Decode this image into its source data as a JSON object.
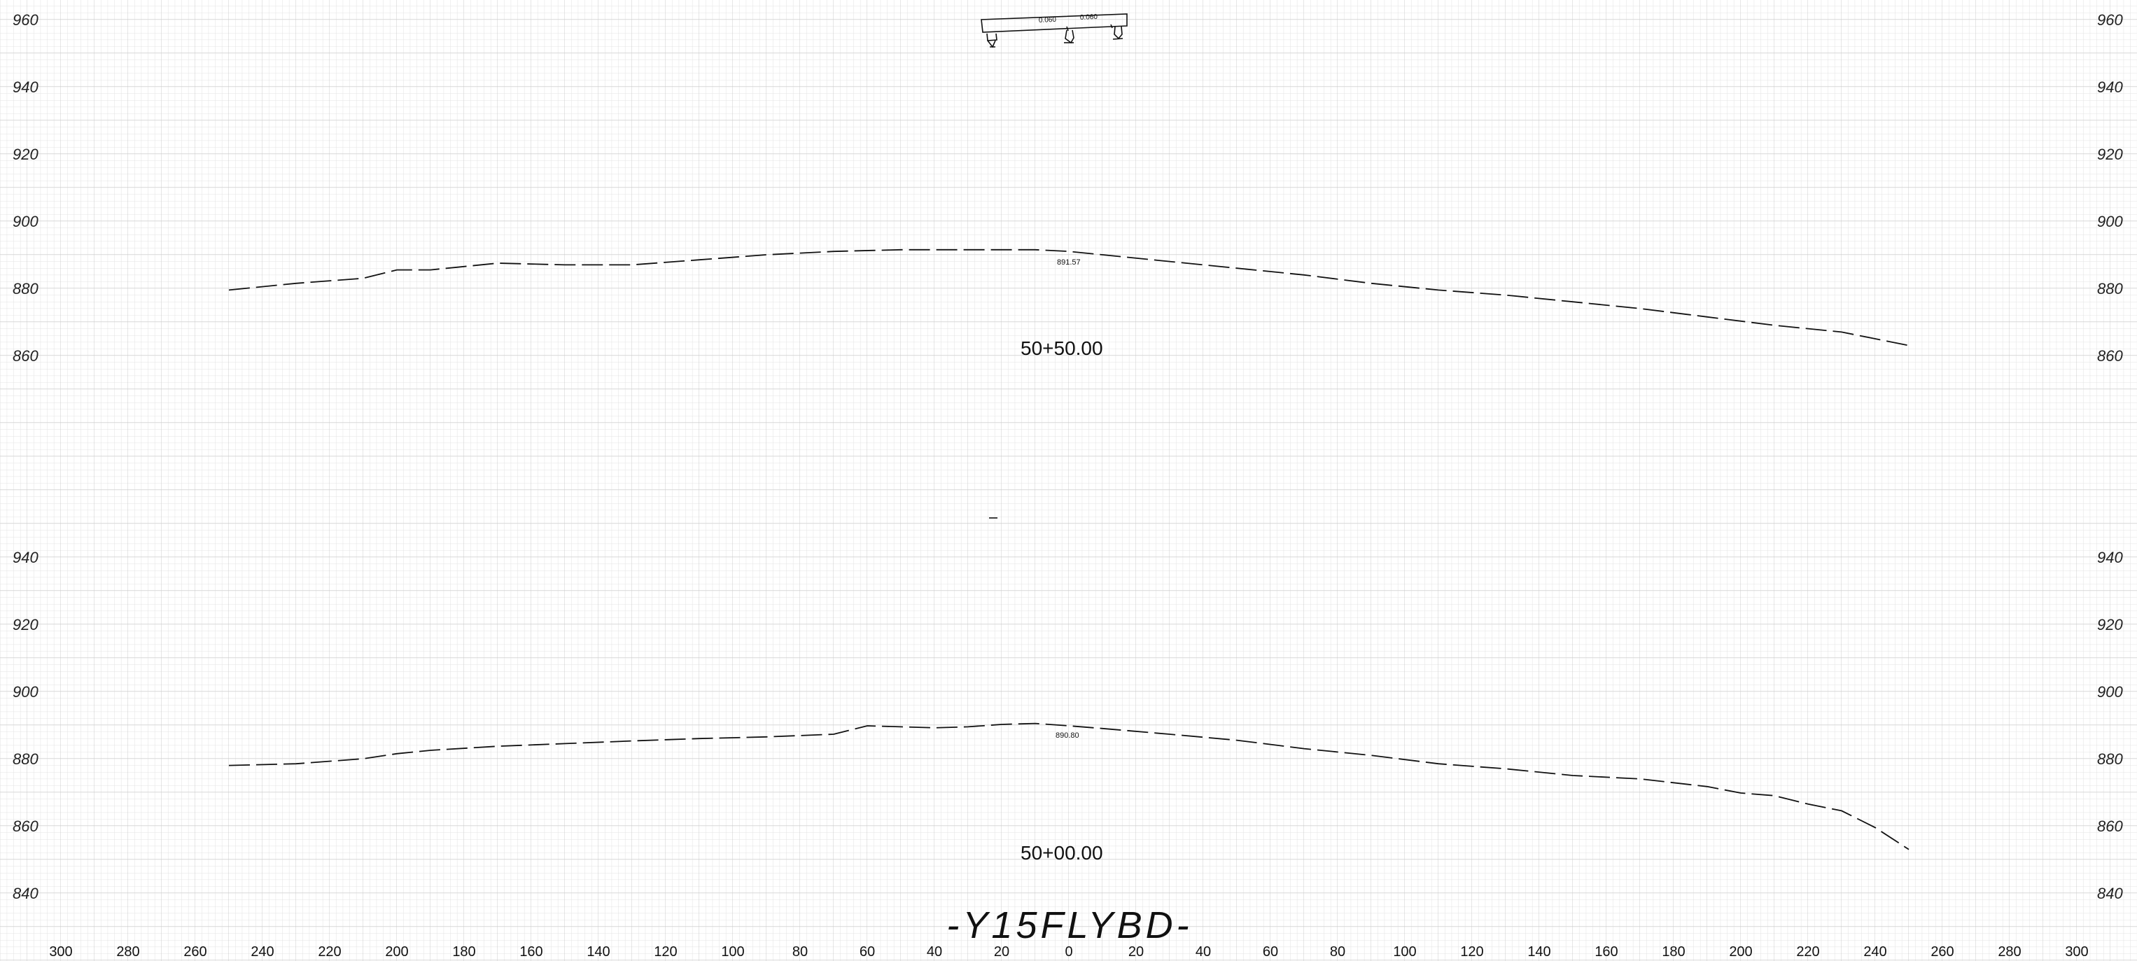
{
  "drawing_title": "-Y15FLYBD-",
  "offset_axis": {
    "labels": [
      "300",
      "280",
      "260",
      "240",
      "220",
      "200",
      "180",
      "160",
      "140",
      "120",
      "100",
      "80",
      "60",
      "40",
      "20",
      "0",
      "20",
      "40",
      "60",
      "80",
      "100",
      "120",
      "140",
      "160",
      "180",
      "200",
      "220",
      "240",
      "260",
      "280",
      "300"
    ]
  },
  "sections": [
    {
      "station": "50+50.00",
      "elevation_labels": [
        "960",
        "940",
        "920",
        "900",
        "880",
        "860"
      ],
      "centerline_elevation": "891.57",
      "bridge_slope_left": "0.060",
      "bridge_slope_right": "0.060"
    },
    {
      "station": "50+00.00",
      "elevation_labels": [
        "940",
        "920",
        "900",
        "880",
        "860",
        "840"
      ],
      "centerline_elevation": "890.80"
    }
  ],
  "chart_data": [
    {
      "type": "line",
      "title": "50+50.00",
      "x_range": [
        -300,
        300
      ],
      "y_range": [
        850,
        965
      ],
      "grid": true,
      "series": [
        {
          "x": [
            -250,
            -230,
            -210,
            -200,
            -190,
            -170,
            -150,
            -130,
            -110,
            -90,
            -70,
            -50,
            -30,
            -10,
            0,
            10,
            30,
            50,
            70,
            90,
            110,
            130,
            150,
            170,
            190,
            210,
            230,
            240,
            250
          ],
          "y": [
            879.5,
            881.5,
            883,
            885.5,
            885.5,
            887.5,
            887,
            887,
            888.5,
            890,
            891,
            891.5,
            891.5,
            891.5,
            891.0,
            890,
            888,
            886,
            884,
            881.5,
            879.5,
            878,
            876,
            874,
            871.5,
            869,
            867,
            865,
            863
          ]
        }
      ]
    },
    {
      "type": "line",
      "title": "50+00.00",
      "x_range": [
        -300,
        300
      ],
      "y_range": [
        835,
        950
      ],
      "grid": true,
      "series": [
        {
          "x": [
            -250,
            -230,
            -210,
            -200,
            -190,
            -170,
            -150,
            -130,
            -110,
            -90,
            -70,
            -60,
            -50,
            -40,
            -30,
            -20,
            -10,
            0,
            10,
            30,
            50,
            70,
            90,
            110,
            130,
            150,
            170,
            190,
            200,
            210,
            220,
            230,
            240,
            250
          ],
          "y": [
            878,
            878.5,
            880,
            881.5,
            882.5,
            883.7,
            884.5,
            885.3,
            886,
            886.5,
            887.3,
            889.8,
            889.5,
            889.2,
            889.5,
            890.2,
            890.5,
            889.8,
            889,
            887.3,
            885.5,
            883,
            881,
            878.5,
            877,
            875,
            874,
            871.7,
            869.8,
            869,
            866.5,
            864.5,
            859.5,
            853
          ]
        }
      ]
    }
  ]
}
